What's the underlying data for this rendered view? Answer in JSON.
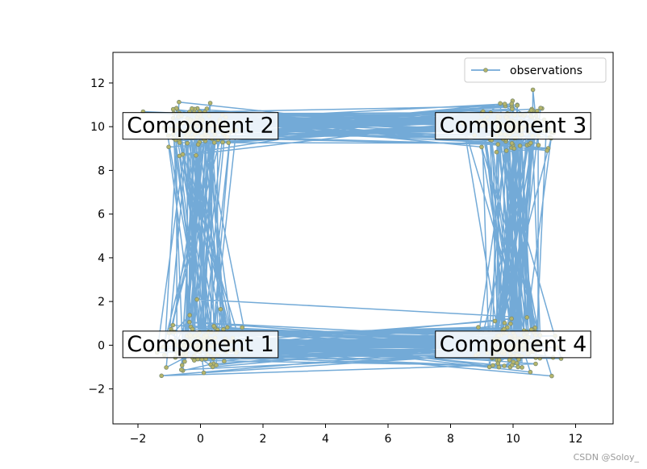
{
  "chart_data": {
    "type": "line",
    "title": "",
    "xlabel": "",
    "ylabel": "",
    "xlim": [
      -2.8,
      13.2
    ],
    "ylim": [
      -3.6,
      13.4
    ],
    "xticks": [
      -2,
      0,
      2,
      4,
      6,
      8,
      10,
      12
    ],
    "yticks": [
      -2,
      0,
      2,
      4,
      6,
      8,
      10,
      12
    ],
    "grid": false,
    "legend": {
      "position": "top-right",
      "entries": [
        "observations"
      ]
    },
    "series": [
      {
        "name": "observations",
        "color": "#5b9bd0",
        "marker_face": "#b5b56a",
        "marker_edge": "#7a8a70"
      }
    ],
    "component_centers": [
      {
        "label": "Component 1",
        "x": 0,
        "y": 0
      },
      {
        "label": "Component 2",
        "x": 0,
        "y": 10
      },
      {
        "label": "Component 3",
        "x": 10,
        "y": 10
      },
      {
        "label": "Component 4",
        "x": 10,
        "y": 0
      }
    ]
  },
  "watermark": "CSDN @Soloy_"
}
